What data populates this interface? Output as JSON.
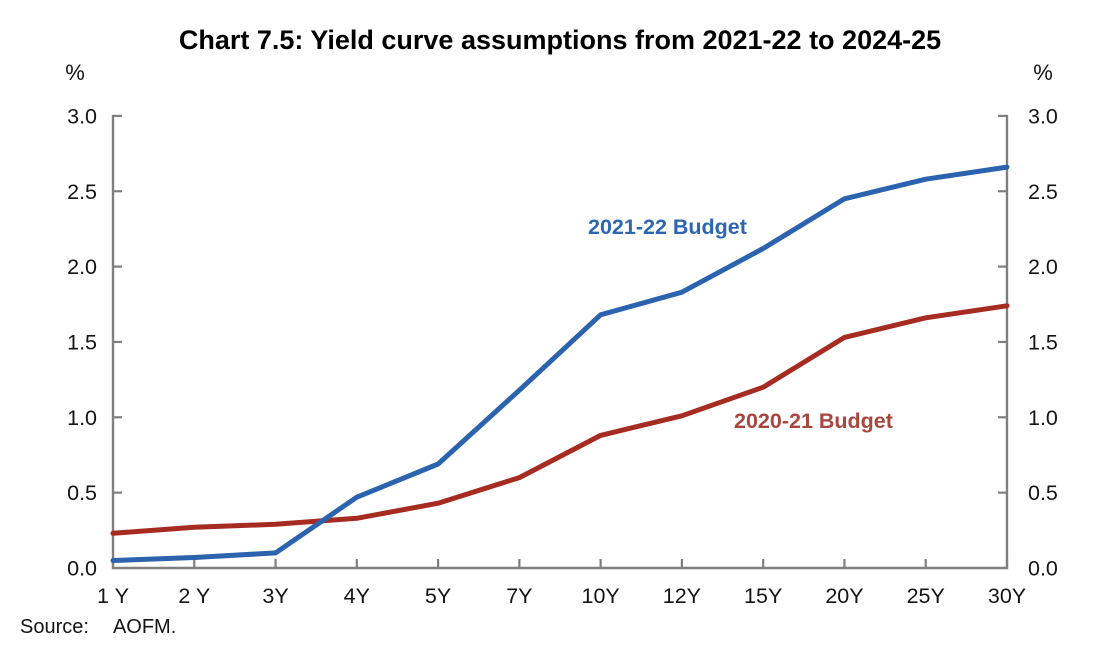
{
  "chart": {
    "title": "Chart 7.5: Yield curve assumptions from 2021-22 to 2024-25",
    "left_axis_unit": "%",
    "right_axis_unit": "%"
  },
  "chart_data": {
    "type": "line",
    "title": "Chart 7.5: Yield curve assumptions from 2021-22 to 2024-25",
    "categories": [
      "1 Y",
      "2 Y",
      "3Y",
      "4Y",
      "5Y",
      "7Y",
      "10Y",
      "12Y",
      "15Y",
      "20Y",
      "25Y",
      "30Y"
    ],
    "series": [
      {
        "name": "2021-22 Budget",
        "color": "#2c63ae",
        "label_color": "#2d66b1",
        "values": [
          0.05,
          0.07,
          0.1,
          0.47,
          0.69,
          1.18,
          1.68,
          1.83,
          2.12,
          2.45,
          2.58,
          2.66
        ]
      },
      {
        "name": "2020-21 Budget",
        "color": "#a62b20",
        "label_color": "#a8463f",
        "values": [
          0.23,
          0.27,
          0.29,
          0.33,
          0.43,
          0.6,
          0.88,
          1.01,
          1.2,
          1.53,
          1.66,
          1.74
        ]
      }
    ],
    "xlabel": "",
    "ylabel_left": "%",
    "ylabel_right": "%",
    "ylim": [
      0.0,
      3.0
    ],
    "ytick_step": 0.5,
    "y_tick_labels": [
      "0.0",
      "0.5",
      "1.0",
      "1.5",
      "2.0",
      "2.5",
      "3.0"
    ],
    "grid": false,
    "legend": "inline-labels",
    "axis_color": "#7f7f7f",
    "text_color": "#141414"
  },
  "footer": {
    "source_label": "Source:",
    "source_value": "AOFM."
  }
}
